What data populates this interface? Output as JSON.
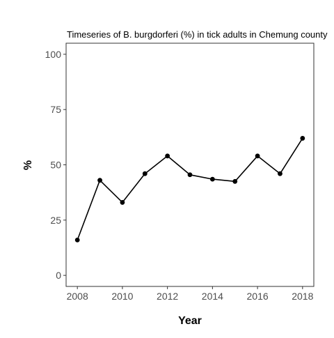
{
  "chart_data": {
    "type": "line",
    "title": "Timeseries of B. burgdorferi (%) in tick adults in Chemung county",
    "xlabel": "Year",
    "ylabel": "%",
    "x": [
      2008,
      2009,
      2010,
      2011,
      2012,
      2013,
      2014,
      2015,
      2016,
      2017,
      2018
    ],
    "series": [
      {
        "values": [
          16,
          43,
          33,
          46,
          54,
          45.5,
          43.5,
          42.5,
          54,
          46,
          62
        ]
      }
    ],
    "xlim": [
      2008,
      2018
    ],
    "ylim": [
      0,
      100
    ],
    "xticks": [
      2008,
      2010,
      2012,
      2014,
      2016,
      2018
    ],
    "yticks": [
      0,
      25,
      50,
      75,
      100
    ],
    "xtick_labels": [
      "2008",
      "2010",
      "2012",
      "2014",
      "2016",
      "2018"
    ],
    "ytick_labels": [
      "0",
      "25",
      "50",
      "75",
      "100"
    ],
    "grid": false,
    "legend": "none",
    "line_color": "#000000",
    "point_color": "#000000"
  }
}
